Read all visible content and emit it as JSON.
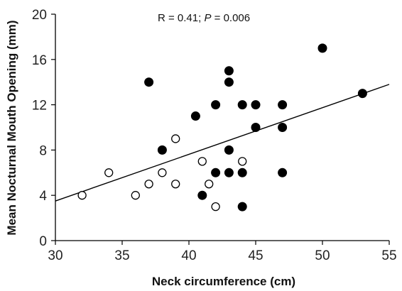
{
  "chart_data": {
    "type": "scatter",
    "title": "",
    "xlabel": "Neck circumference (cm)",
    "ylabel": "Mean Nocturnal Mouth Opening  (mm)",
    "xlim": [
      30,
      55
    ],
    "ylim": [
      0,
      20
    ],
    "xticks": [
      30,
      35,
      40,
      45,
      50,
      55
    ],
    "yticks": [
      0,
      4,
      8,
      12,
      16,
      20
    ],
    "grid": false,
    "legend": "none",
    "annotation": {
      "prefix": "R = 0.41; ",
      "italic": "P",
      "suffix": " = 0.006"
    },
    "series": [
      {
        "marker": "filled-circle",
        "color": "#000000",
        "points": [
          {
            "x": 37,
            "y": 14
          },
          {
            "x": 38,
            "y": 8
          },
          {
            "x": 40.5,
            "y": 11
          },
          {
            "x": 41,
            "y": 4
          },
          {
            "x": 42,
            "y": 12
          },
          {
            "x": 42,
            "y": 6
          },
          {
            "x": 43,
            "y": 15
          },
          {
            "x": 43,
            "y": 14
          },
          {
            "x": 43,
            "y": 8
          },
          {
            "x": 43,
            "y": 6
          },
          {
            "x": 44,
            "y": 12
          },
          {
            "x": 44,
            "y": 6
          },
          {
            "x": 44,
            "y": 3
          },
          {
            "x": 45,
            "y": 12
          },
          {
            "x": 45,
            "y": 10
          },
          {
            "x": 47,
            "y": 12
          },
          {
            "x": 47,
            "y": 10
          },
          {
            "x": 47,
            "y": 6
          },
          {
            "x": 50,
            "y": 17
          },
          {
            "x": 53,
            "y": 13
          }
        ]
      },
      {
        "marker": "open-circle",
        "color": "#000000",
        "points": [
          {
            "x": 32,
            "y": 4
          },
          {
            "x": 34,
            "y": 6
          },
          {
            "x": 36,
            "y": 4
          },
          {
            "x": 37,
            "y": 5
          },
          {
            "x": 38,
            "y": 6
          },
          {
            "x": 39,
            "y": 9
          },
          {
            "x": 39,
            "y": 5
          },
          {
            "x": 41,
            "y": 7
          },
          {
            "x": 41.5,
            "y": 5
          },
          {
            "x": 42,
            "y": 3
          },
          {
            "x": 44,
            "y": 7
          }
        ]
      }
    ],
    "trendline": {
      "x": [
        30,
        55
      ],
      "y": [
        3.5,
        13.8
      ]
    }
  }
}
